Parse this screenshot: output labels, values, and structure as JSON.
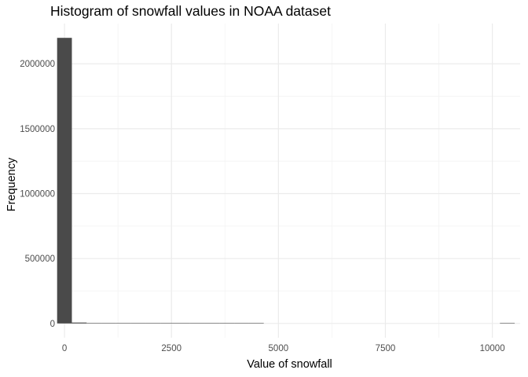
{
  "chart_data": {
    "type": "bar",
    "title": "Histogram of snowfall values in NOAA dataset",
    "xlabel": "Value of snowfall",
    "ylabel": "Frequency",
    "xlim": [
      -130,
      10650
    ],
    "ylim": [
      -110000,
      2310000
    ],
    "x_ticks": [
      0,
      2500,
      5000,
      7500,
      10000
    ],
    "x_tick_labels": [
      "0",
      "2500",
      "5000",
      "7500",
      "10000"
    ],
    "y_ticks": [
      0,
      500000,
      1000000,
      1500000,
      2000000
    ],
    "y_tick_labels": [
      "0",
      "500000",
      "1000000",
      "1500000",
      "2000000"
    ],
    "bin_width": 345,
    "bins": [
      {
        "center": 0,
        "count": 2200000
      },
      {
        "center": 345,
        "count": 7000
      },
      {
        "center": 690,
        "count": 1500
      },
      {
        "center": 1035,
        "count": 500
      },
      {
        "center": 1380,
        "count": 200
      },
      {
        "center": 1725,
        "count": 80
      },
      {
        "center": 2070,
        "count": 40
      },
      {
        "center": 2415,
        "count": 20
      },
      {
        "center": 2760,
        "count": 10
      },
      {
        "center": 3105,
        "count": 6
      },
      {
        "center": 3450,
        "count": 4
      },
      {
        "center": 3795,
        "count": 3
      },
      {
        "center": 4140,
        "count": 2
      },
      {
        "center": 4485,
        "count": 1
      },
      {
        "center": 10350,
        "count": 1
      }
    ],
    "bar_color": "#4a4a4a",
    "grid": true,
    "grid_color": "#ebebeb",
    "legend": "none"
  }
}
